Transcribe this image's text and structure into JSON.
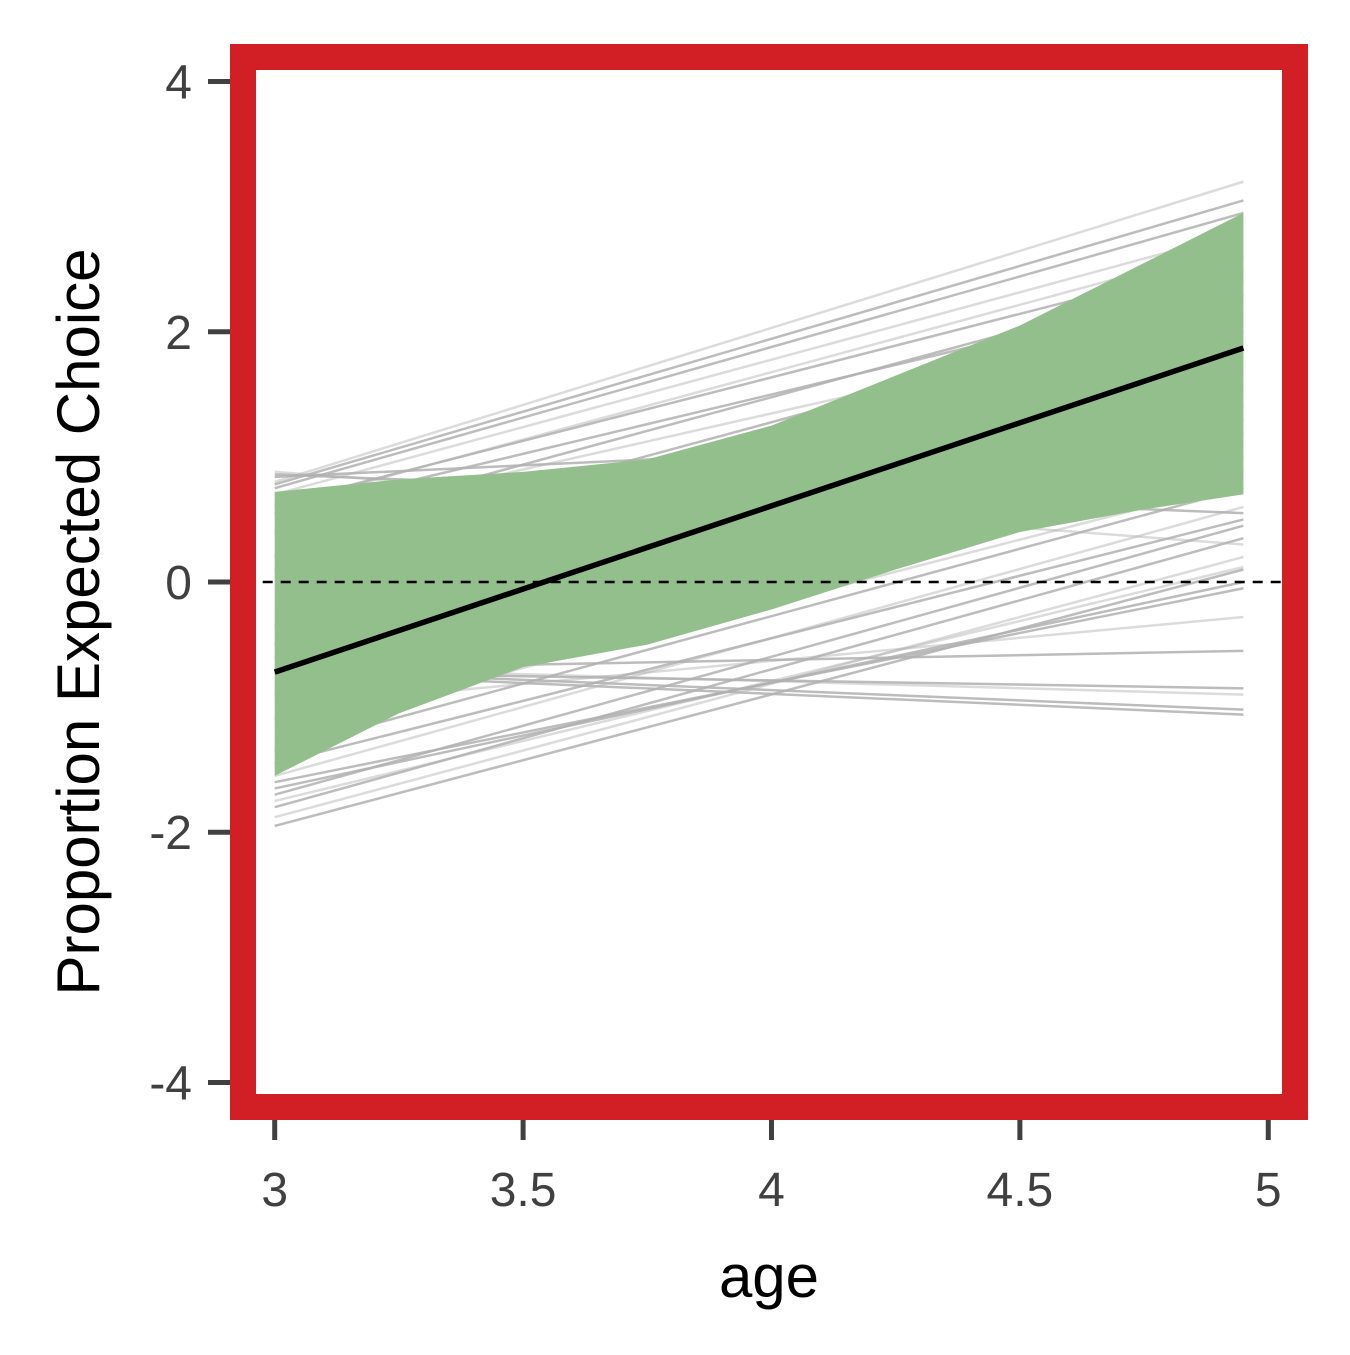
{
  "chart_data": {
    "type": "line",
    "title": "",
    "xlabel": "age",
    "ylabel": "Proportion Expected Choice",
    "xlim": [
      2.91,
      5.08
    ],
    "ylim": [
      -4.3,
      4.3
    ],
    "x_ticks": [
      {
        "value": 3,
        "label": "3"
      },
      {
        "value": 3.5,
        "label": "3.5"
      },
      {
        "value": 4,
        "label": "4"
      },
      {
        "value": 4.5,
        "label": "4.5"
      },
      {
        "value": 5,
        "label": "5"
      }
    ],
    "y_ticks": [
      {
        "value": -4,
        "label": "-4"
      },
      {
        "value": -2,
        "label": "-2"
      },
      {
        "value": 0,
        "label": "0"
      },
      {
        "value": 2,
        "label": "2"
      },
      {
        "value": 4,
        "label": "4"
      }
    ],
    "x_range": [
      3,
      4.95
    ],
    "reference_line": {
      "y": 0,
      "style": "dashed"
    },
    "mean_line": {
      "x": [
        3,
        4.95
      ],
      "y": [
        -0.72,
        1.87
      ]
    },
    "credible_band": {
      "x": [
        3,
        3.25,
        3.5,
        3.75,
        4,
        4.25,
        4.5,
        4.75,
        4.95
      ],
      "lower": [
        -1.55,
        -1.05,
        -0.68,
        -0.5,
        -0.22,
        0.1,
        0.4,
        0.58,
        0.7
      ],
      "upper": [
        0.72,
        0.82,
        0.88,
        0.98,
        1.25,
        1.65,
        2.05,
        2.55,
        2.95
      ]
    },
    "posterior_draws": [
      {
        "y_start": 0.88,
        "y_end": 0.3
      },
      {
        "y_start": 0.86,
        "y_end": 0.55
      },
      {
        "y_start": 0.84,
        "y_end": 1.2
      },
      {
        "y_start": 0.8,
        "y_end": 3.2
      },
      {
        "y_start": 0.78,
        "y_end": 3.05
      },
      {
        "y_start": 0.75,
        "y_end": 2.95
      },
      {
        "y_start": 0.7,
        "y_end": 2.8
      },
      {
        "y_start": 0.62,
        "y_end": 2.6
      },
      {
        "y_start": 0.55,
        "y_end": 2.4
      },
      {
        "y_start": 0.45,
        "y_end": 2.2
      },
      {
        "y_start": 0.3,
        "y_end": 2.0
      },
      {
        "y_start": 0.1,
        "y_end": 1.8
      },
      {
        "y_start": -0.1,
        "y_end": 1.6
      },
      {
        "y_start": -0.35,
        "y_end": 1.4
      },
      {
        "y_start": -0.6,
        "y_end": 1.2
      },
      {
        "y_start": -0.85,
        "y_end": 1.05
      },
      {
        "y_start": -1.1,
        "y_end": 0.9
      },
      {
        "y_start": -1.35,
        "y_end": 0.75
      },
      {
        "y_start": -1.55,
        "y_end": 0.6
      },
      {
        "y_start": -1.7,
        "y_end": 0.45
      },
      {
        "y_start": -1.8,
        "y_end": 0.35
      },
      {
        "y_start": -1.88,
        "y_end": 0.2
      },
      {
        "y_start": -1.95,
        "y_end": 0.1
      },
      {
        "y_start": -1.6,
        "y_end": -0.05
      },
      {
        "y_start": -1.0,
        "y_end": -0.28
      },
      {
        "y_start": -0.7,
        "y_end": -0.55
      },
      {
        "y_start": -0.72,
        "y_end": -0.85
      },
      {
        "y_start": -0.68,
        "y_end": -0.9
      },
      {
        "y_start": -0.7,
        "y_end": -1.02
      },
      {
        "y_start": -0.72,
        "y_end": -1.06
      },
      {
        "y_start": 0.6,
        "y_end": 2.7
      },
      {
        "y_start": 0.4,
        "y_end": 2.5
      },
      {
        "y_start": 0.2,
        "y_end": 2.3
      },
      {
        "y_start": -0.2,
        "y_end": 1.5
      },
      {
        "y_start": -0.5,
        "y_end": 1.3
      },
      {
        "y_start": -0.9,
        "y_end": 1.0
      },
      {
        "y_start": -1.2,
        "y_end": 0.8
      },
      {
        "y_start": -1.45,
        "y_end": 0.5
      },
      {
        "y_start": -1.65,
        "y_end": 0.0
      },
      {
        "y_start": -1.75,
        "y_end": 0.12
      }
    ],
    "colors": {
      "band": "#93bf8d",
      "draws": "#b0b0b0",
      "mean_line": "#000000",
      "panel_border": "#d21f26",
      "ticks": "#404040"
    },
    "grid": false,
    "legend": "none"
  }
}
